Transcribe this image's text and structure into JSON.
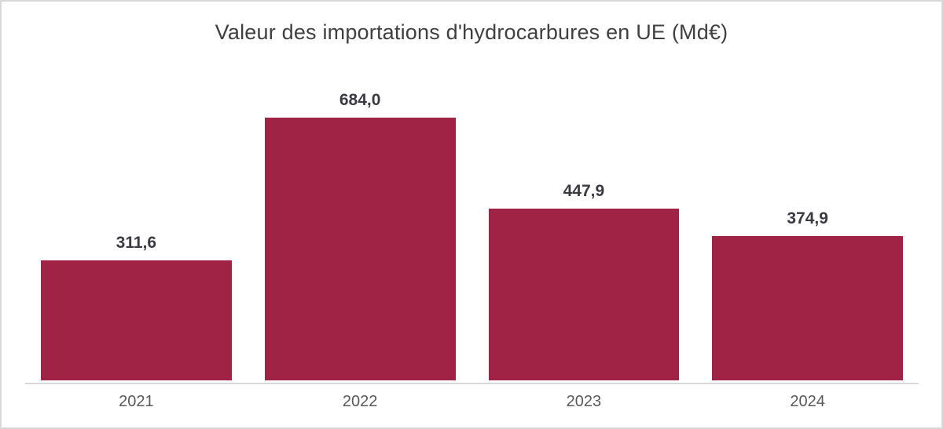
{
  "chart_data": {
    "type": "bar",
    "title": "Valeur des importations d'hydrocarbures en UE (Md€)",
    "categories": [
      "2021",
      "2022",
      "2023",
      "2024"
    ],
    "values": [
      311.6,
      684.0,
      447.9,
      374.9
    ],
    "value_labels": [
      "311,6",
      "684,0",
      "447,9",
      "374,9"
    ],
    "xlabel": "",
    "ylabel": "",
    "ylim": [
      0,
      700
    ],
    "grid": false,
    "legend": false,
    "colors": {
      "bar": "#a02346",
      "axis_line": "#d9d9d9",
      "title_text": "#404040",
      "value_label_text": "#3a3a42",
      "tick_text": "#595959",
      "frame_border": "#d9d9d9",
      "background": "#ffffff"
    }
  }
}
